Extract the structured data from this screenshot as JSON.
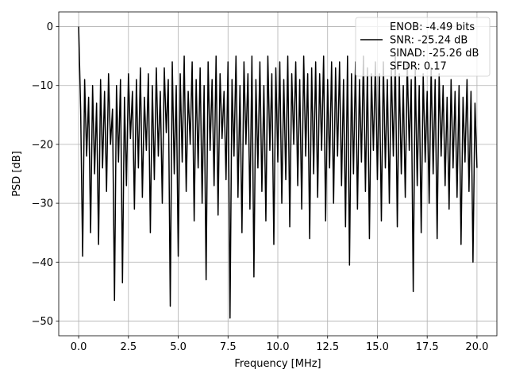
{
  "chart_data": {
    "type": "line",
    "xlabel": "Frequency [MHz]",
    "ylabel": "PSD [dB]",
    "x": [
      0.0,
      0.1,
      0.2,
      0.3,
      0.4,
      0.5,
      0.6,
      0.7,
      0.8,
      0.9,
      1.0,
      1.1,
      1.2,
      1.3,
      1.4,
      1.5,
      1.6,
      1.7,
      1.8,
      1.9,
      2.0,
      2.1,
      2.2,
      2.3,
      2.4,
      2.5,
      2.6,
      2.7,
      2.8,
      2.9,
      3.0,
      3.1,
      3.2,
      3.3,
      3.4,
      3.5,
      3.6,
      3.7,
      3.8,
      3.9,
      4.0,
      4.1,
      4.2,
      4.3,
      4.4,
      4.5,
      4.6,
      4.7,
      4.8,
      4.9,
      5.0,
      5.1,
      5.2,
      5.3,
      5.4,
      5.5,
      5.6,
      5.7,
      5.8,
      5.9,
      6.0,
      6.1,
      6.2,
      6.3,
      6.4,
      6.5,
      6.6,
      6.7,
      6.8,
      6.9,
      7.0,
      7.1,
      7.2,
      7.3,
      7.4,
      7.5,
      7.6,
      7.7,
      7.8,
      7.9,
      8.0,
      8.1,
      8.2,
      8.3,
      8.4,
      8.5,
      8.6,
      8.7,
      8.8,
      8.9,
      9.0,
      9.1,
      9.2,
      9.3,
      9.4,
      9.5,
      9.6,
      9.7,
      9.8,
      9.9,
      10.0,
      10.1,
      10.2,
      10.3,
      10.4,
      10.5,
      10.6,
      10.7,
      10.8,
      10.9,
      11.0,
      11.1,
      11.2,
      11.3,
      11.4,
      11.5,
      11.6,
      11.7,
      11.8,
      11.9,
      12.0,
      12.1,
      12.2,
      12.3,
      12.4,
      12.5,
      12.6,
      12.7,
      12.8,
      12.9,
      13.0,
      13.1,
      13.2,
      13.3,
      13.4,
      13.5,
      13.6,
      13.7,
      13.8,
      13.9,
      14.0,
      14.1,
      14.2,
      14.3,
      14.4,
      14.5,
      14.6,
      14.7,
      14.8,
      14.9,
      15.0,
      15.1,
      15.2,
      15.3,
      15.4,
      15.5,
      15.6,
      15.7,
      15.8,
      15.9,
      16.0,
      16.1,
      16.2,
      16.3,
      16.4,
      16.5,
      16.6,
      16.7,
      16.8,
      16.9,
      17.0,
      17.1,
      17.2,
      17.3,
      17.4,
      17.5,
      17.6,
      17.7,
      17.8,
      17.9,
      18.0,
      18.1,
      18.2,
      18.3,
      18.4,
      18.5,
      18.6,
      18.7,
      18.8,
      18.9,
      19.0,
      19.1,
      19.2,
      19.3,
      19.4,
      19.5,
      19.6,
      19.7,
      19.8,
      19.9,
      20.0
    ],
    "series": [
      {
        "name": "ENOB: -4.49 bits\nSNR: -25.24 dB\nSINAD: -25.26 dB\nSFDR: 0.17",
        "color": "#000000",
        "values": [
          0,
          -14,
          -39,
          -9,
          -22,
          -12,
          -35,
          -10,
          -25,
          -13,
          -37,
          -9,
          -24,
          -11,
          -28,
          -8,
          -20,
          -14,
          -46.5,
          -10,
          -23,
          -9,
          -43.5,
          -12,
          -27,
          -8,
          -19,
          -11,
          -31,
          -9,
          -24,
          -7,
          -29,
          -12,
          -21,
          -8,
          -35,
          -10,
          -26,
          -7,
          -22,
          -11,
          -30,
          -7,
          -18,
          -9,
          -47.5,
          -6,
          -25,
          -10,
          -39,
          -8,
          -23,
          -5,
          -28,
          -11,
          -20,
          -6,
          -33,
          -9,
          -24,
          -7,
          -30,
          -10,
          -43,
          -6,
          -21,
          -9,
          -27,
          -5,
          -32,
          -8,
          -19,
          -11,
          -26,
          -6,
          -49.5,
          -9,
          -22,
          -5,
          -29,
          -10,
          -35,
          -6,
          -20,
          -8,
          -31,
          -5,
          -42.5,
          -9,
          -24,
          -6,
          -28,
          -10,
          -33,
          -5,
          -21,
          -8,
          -37,
          -7,
          -23,
          -6,
          -30,
          -9,
          -26,
          -5,
          -34,
          -8,
          -20,
          -6,
          -27,
          -9,
          -31,
          -5,
          -22,
          -8,
          -36,
          -7,
          -25,
          -6,
          -29,
          -8,
          -21,
          -5,
          -33,
          -9,
          -24,
          -6,
          -30,
          -7,
          -22,
          -6,
          -27,
          -9,
          -34,
          -5,
          -40.5,
          -8,
          -25,
          -6,
          -31,
          -9,
          -23,
          -5,
          -28,
          -7,
          -36,
          -8,
          -21,
          -6,
          -26,
          -8,
          -33,
          -6,
          -24,
          -9,
          -30,
          -7,
          -22,
          -5,
          -34,
          -8,
          -25,
          -10,
          -29,
          -6,
          -21,
          -9,
          -45,
          -7,
          -27,
          -10,
          -35,
          -8,
          -23,
          -11,
          -30,
          -7,
          -25,
          -9,
          -36,
          -8,
          -22,
          -10,
          -27,
          -12,
          -31,
          -9,
          -24,
          -11,
          -29,
          -10,
          -37,
          -12,
          -23,
          -9,
          -28,
          -11,
          -40,
          -13,
          -24
        ]
      }
    ],
    "xlim": [
      -1.0,
      21.0
    ],
    "xticks": [
      {
        "value": 0,
        "label": "0.0"
      },
      {
        "value": 2.5,
        "label": "2.5"
      },
      {
        "value": 5,
        "label": "5.0"
      },
      {
        "value": 7.5,
        "label": "7.5"
      },
      {
        "value": 10,
        "label": "10.0"
      },
      {
        "value": 12.5,
        "label": "12.5"
      },
      {
        "value": 15,
        "label": "15.0"
      },
      {
        "value": 17.5,
        "label": "17.5"
      },
      {
        "value": 20,
        "label": "20.0"
      }
    ],
    "ylim": [
      -52.5,
      2.5
    ],
    "yticks": [
      {
        "value": -50,
        "label": "−50"
      },
      {
        "value": -40,
        "label": "−40"
      },
      {
        "value": -30,
        "label": "−30"
      },
      {
        "value": -20,
        "label": "−20"
      },
      {
        "value": -10,
        "label": "−10"
      },
      0
    ],
    "grid": true,
    "legend": "upper right"
  }
}
